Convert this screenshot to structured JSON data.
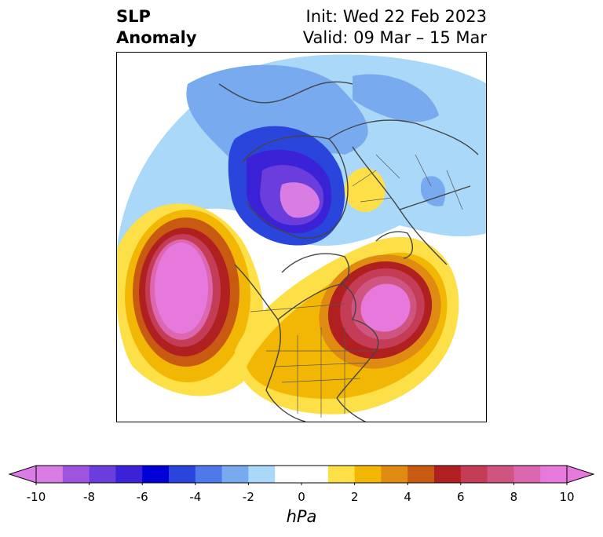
{
  "title": {
    "left_line1": "SLP",
    "left_line2": "Anomaly",
    "right_line1": "Init: Wed 22 Feb 2023",
    "right_line2": "Valid: 09 Mar – 15 Mar"
  },
  "colorbar": {
    "unit": "hPa",
    "colors": [
      "#d97de4",
      "#a055e0",
      "#6a3ddc",
      "#3b22d6",
      "#0000d6",
      "#2a45dc",
      "#4e79e8",
      "#78aaf0",
      "#a9d8f8",
      "#ffffff",
      "#ffffff",
      "#fde047",
      "#f2b705",
      "#df8a10",
      "#c85a12",
      "#b02020",
      "#c43c55",
      "#cf5580",
      "#dc66b0",
      "#e879dc"
    ],
    "tick_labels": [
      "-10",
      "-8",
      "-6",
      "-4",
      "-2",
      "0",
      "2",
      "4",
      "6",
      "8",
      "10"
    ],
    "extend_min_color": "#d97de4",
    "extend_max_color": "#e879dc"
  },
  "map": {
    "projection": "north-polar-stereographic",
    "features": [
      {
        "name": "Low anomaly over Greenland/Arctic",
        "min_hpa": -10
      },
      {
        "name": "High anomaly over North Pacific/Alaska",
        "max_hpa": 10
      },
      {
        "name": "High anomaly over western North Atlantic",
        "max_hpa": 10
      },
      {
        "name": "Weak high anomaly over Scandinavia",
        "max_hpa": 3
      },
      {
        "name": "Weak negative anomaly over Siberia/Eurasia",
        "min_hpa": -3
      }
    ]
  }
}
